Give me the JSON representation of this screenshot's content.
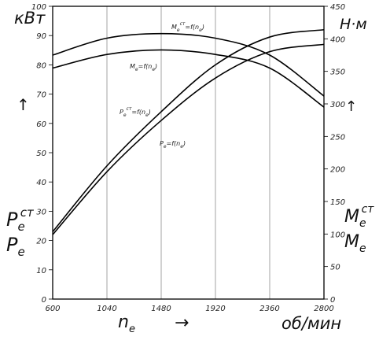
{
  "chart_data": {
    "type": "line",
    "x": [
      600,
      1040,
      1480,
      1920,
      2360,
      2800
    ],
    "xlabel": "n",
    "xlabel_sub": "e",
    "xunit": "об/мин",
    "xlim": [
      600,
      2800
    ],
    "xticks": [
      "600",
      "1040",
      "1480",
      "1920",
      "2360",
      "2800"
    ],
    "ylabel_left": "кВт",
    "ylim_left": [
      0,
      100
    ],
    "yticks_left": [
      "0",
      "10",
      "20",
      "30",
      "40",
      "50",
      "60",
      "70",
      "80",
      "90",
      "100"
    ],
    "ylabel_right": "Н·м",
    "ylim_right": [
      0,
      450
    ],
    "yticks_right": [
      "0",
      "50",
      "100",
      "150",
      "200",
      "250",
      "300",
      "350",
      "400",
      "450"
    ],
    "grid": "vertical",
    "series": [
      {
        "name": "Pe_ct",
        "axis": "left",
        "x": [
          600,
          1040,
          1480,
          1920,
          2360,
          2800
        ],
        "values": [
          23,
          45.5,
          64,
          80,
          89.5,
          92
        ]
      },
      {
        "name": "Pe",
        "axis": "left",
        "x": [
          600,
          1040,
          1480,
          1920,
          2360,
          2800
        ],
        "values": [
          22,
          43.5,
          61,
          75.5,
          84.5,
          87
        ]
      },
      {
        "name": "Me_ct",
        "axis": "right",
        "x": [
          600,
          1040,
          1480,
          1920,
          2360,
          2800
        ],
        "values": [
          375,
          401,
          408,
          401,
          375,
          312
        ]
      },
      {
        "name": "Me",
        "axis": "right",
        "x": [
          600,
          1040,
          1480,
          1920,
          2360,
          2800
        ],
        "values": [
          355,
          376,
          383,
          376,
          355,
          295
        ]
      }
    ],
    "curve_labels": [
      {
        "main": "M",
        "sub": "e",
        "sup": "ст",
        "tail": "=f(n",
        "tail_sub": "e",
        "end": ")"
      },
      {
        "main": "M",
        "sub": "e",
        "sup": "",
        "tail": "=f(n",
        "tail_sub": "e",
        "end": ")"
      },
      {
        "main": "P",
        "sub": "e",
        "sup": "ст",
        "tail": "=f(n",
        "tail_sub": "e",
        "end": ")"
      },
      {
        "main": "P",
        "sub": "e",
        "sup": "",
        "tail": "=f(n",
        "tail_sub": "e",
        "end": ")"
      }
    ],
    "left_legend": {
      "main": "P",
      "sub": "e",
      "sup": "ст",
      "main2": "P",
      "sub2": "e"
    },
    "right_legend": {
      "main": "M",
      "sub": "e",
      "sup": "ст",
      "main2": "M",
      "sub2": "e"
    },
    "arrows": [
      "↑",
      "↑",
      "→"
    ]
  }
}
